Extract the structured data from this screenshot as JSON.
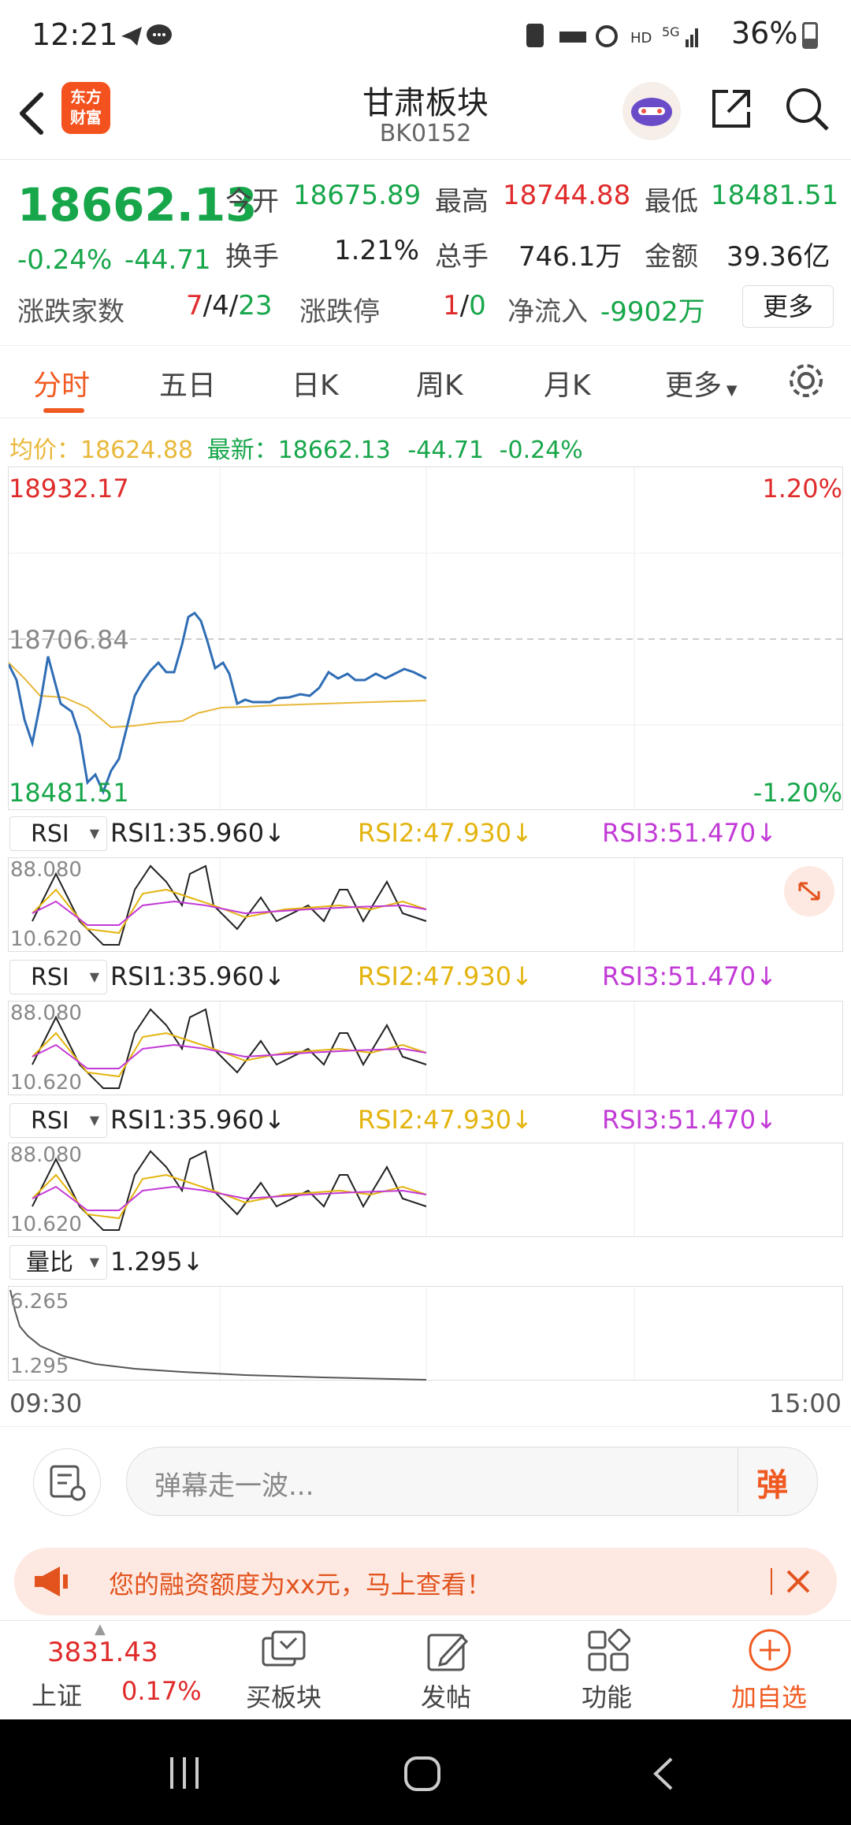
{
  "status_bar": {
    "time": "12:21",
    "indicators": "HD 5G 36%"
  },
  "header": {
    "title": "甘肃板块",
    "code": "BK0152",
    "logo_text_top": "东方",
    "logo_text_bottom": "财富"
  },
  "quote": {
    "price": "18662.13",
    "change_pct": "-0.24%",
    "change_abs": "-44.71",
    "open_label": "今开",
    "open_value": "18675.89",
    "high_label": "最高",
    "high_value": "18744.88",
    "low_label": "最低",
    "low_value": "18481.51",
    "turnover_label": "换手",
    "turnover_value": "1.21%",
    "volume_label": "总手",
    "volume_value": "746.1万",
    "amount_label": "金额",
    "amount_value": "39.36亿",
    "updown_label": "涨跌家数",
    "up_count": "7",
    "flat_count": "4",
    "down_count": "23",
    "sep": "/",
    "limit_label": "涨跌停",
    "limit_up": "1",
    "limit_down": "0",
    "inflow_label": "净流入",
    "inflow_value": "-9902万",
    "more_label": "更多"
  },
  "tabs": [
    "分时",
    "五日",
    "日K",
    "周K",
    "月K",
    "更多"
  ],
  "intraday": {
    "avg_label": "均价：",
    "avg_value": "18624.88",
    "latest_label": "最新：",
    "latest_value": "18662.13",
    "latest_chg": "-44.71",
    "latest_pct": "-0.24%",
    "top_price": "18932.17",
    "top_pct": "1.20%",
    "mid_price": "18706.84",
    "bottom_price": "18481.51",
    "bottom_pct": "-1.20%",
    "time_start": "09:30",
    "time_end": "15:00"
  },
  "indicators": [
    {
      "name": "RSI",
      "rsi1": "RSI1:35.960↓",
      "rsi2": "RSI2:47.930↓",
      "rsi3": "RSI3:51.470↓",
      "max": "88.080",
      "min": "10.620"
    },
    {
      "name": "RSI",
      "rsi1": "RSI1:35.960↓",
      "rsi2": "RSI2:47.930↓",
      "rsi3": "RSI3:51.470↓",
      "max": "88.080",
      "min": "10.620"
    },
    {
      "name": "RSI",
      "rsi1": "RSI1:35.960↓",
      "rsi2": "RSI2:47.930↓",
      "rsi3": "RSI3:51.470↓",
      "max": "88.080",
      "min": "10.620"
    }
  ],
  "volume_ratio": {
    "name": "量比",
    "value": "1.295↓",
    "max": "6.265",
    "min": "1.295"
  },
  "comment": {
    "placeholder": "弹幕走一波...",
    "send_label": "弹"
  },
  "banner": {
    "text": "您的融资额度为xx元，马上查看！"
  },
  "bottom_nav": {
    "index_value": "3831.43",
    "index_name": "上证",
    "index_pct": "0.17%",
    "items": [
      "买板块",
      "发帖",
      "功能",
      "加自选"
    ]
  },
  "colors": {
    "up": "#e02b2b",
    "down": "#17a64a",
    "accent": "#f05a22",
    "price_line": "#2f6db5",
    "avg_line": "#e8b83a",
    "rsi2": "#e3b40e",
    "rsi3": "#c23ad6"
  }
}
